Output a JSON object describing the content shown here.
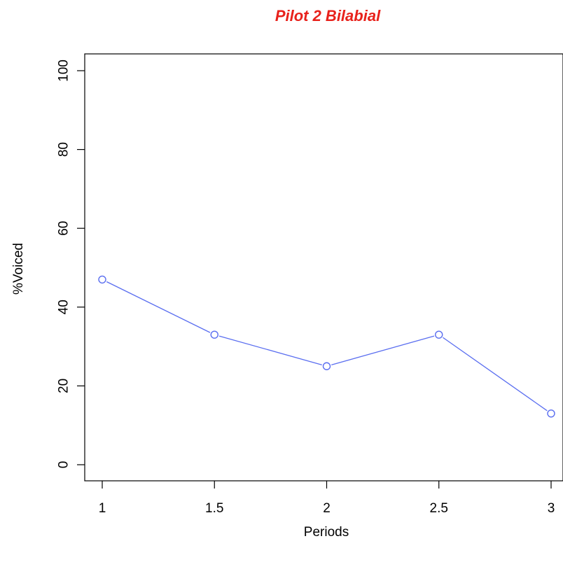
{
  "chart_data": {
    "type": "line",
    "title": "Pilot 2 Bilabial",
    "xlabel": "Periods",
    "ylabel": "%Voiced",
    "x": [
      1,
      1.5,
      2,
      2.5,
      3
    ],
    "series": [
      {
        "values": [
          47,
          33,
          25,
          33,
          13
        ]
      }
    ],
    "xlim": [
      1,
      3
    ],
    "ylim": [
      0,
      100
    ],
    "xticks": [
      "1",
      "1.5",
      "2",
      "2.5",
      "3"
    ],
    "yticks": [
      "0",
      "20",
      "40",
      "60",
      "80",
      "100"
    ],
    "grid": false,
    "markers": "open-circle",
    "colors": {
      "title": "#e8211b",
      "series": "#5a6ef0",
      "axis": "#000000"
    }
  }
}
